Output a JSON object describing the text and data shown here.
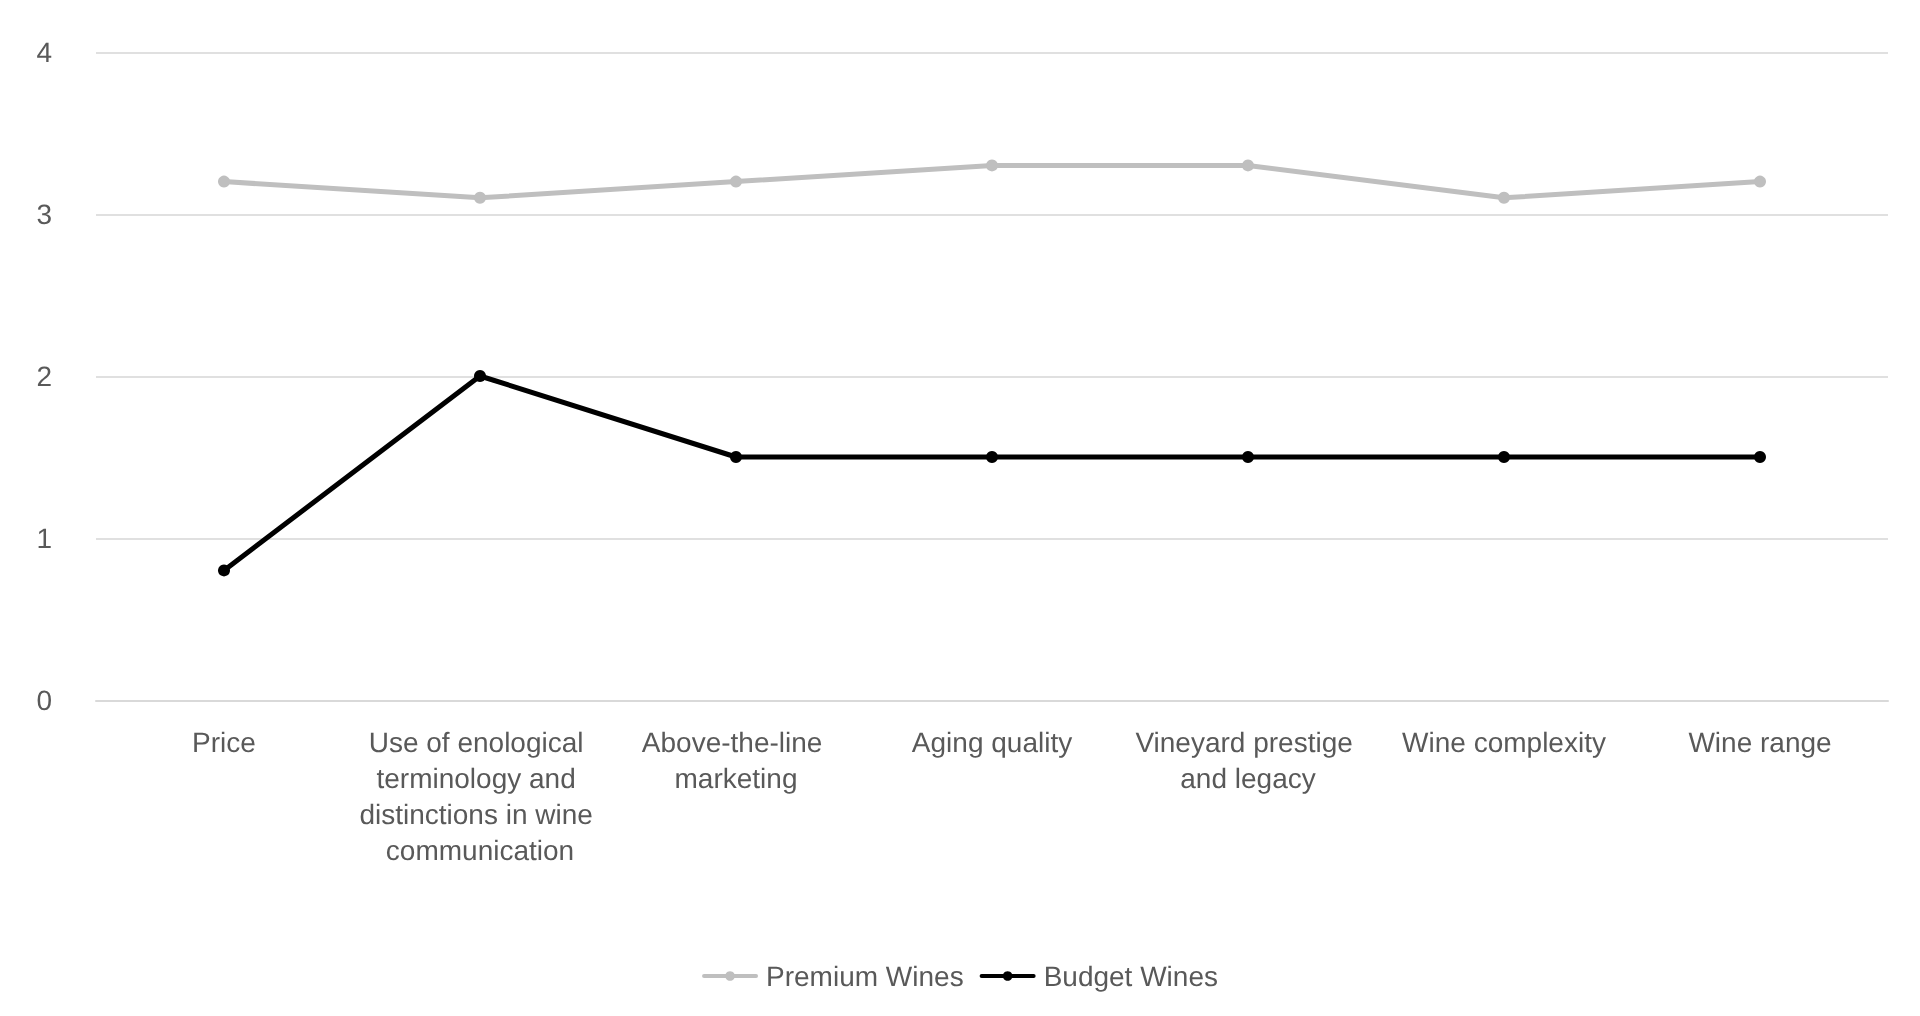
{
  "chart_data": {
    "type": "line",
    "categories": [
      "Price",
      "Use of enological terminology and distinctions in wine communication",
      "Above-the-line marketing",
      "Aging quality",
      "Vineyard prestige and legacy",
      "Wine complexity",
      "Wine range"
    ],
    "series": [
      {
        "name": "Premium Wines",
        "color": "#bfbfbf",
        "values": [
          3.2,
          3.1,
          3.2,
          3.3,
          3.3,
          3.1,
          3.2
        ]
      },
      {
        "name": "Budget Wines",
        "color": "#000000",
        "values": [
          0.8,
          2.0,
          1.5,
          1.5,
          1.5,
          1.5,
          1.5
        ]
      }
    ],
    "ylim": [
      0,
      4
    ],
    "yticks": [
      0,
      1,
      2,
      3,
      4
    ],
    "grid": "y",
    "legend": "bottom",
    "marker": "circle",
    "line_style": "solid"
  }
}
